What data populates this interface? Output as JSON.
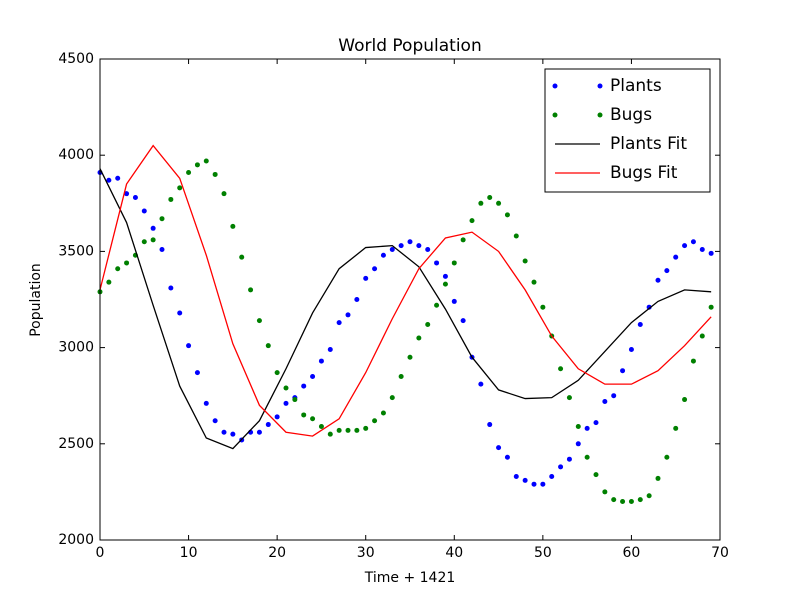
{
  "chart_data": {
    "type": "line",
    "title": "World Population",
    "xlabel": "Time + 1421",
    "ylabel": "Population",
    "x": [
      0,
      1,
      2,
      3,
      4,
      5,
      6,
      7,
      8,
      9,
      10,
      11,
      12,
      13,
      14,
      15,
      16,
      17,
      18,
      19,
      20,
      21,
      22,
      23,
      24,
      25,
      26,
      27,
      28,
      29,
      30,
      31,
      32,
      33,
      34,
      35,
      36,
      37,
      38,
      39,
      40,
      41,
      42,
      43,
      44,
      45,
      46,
      47,
      48,
      49,
      50,
      51,
      52,
      53,
      54,
      55,
      56,
      57,
      58,
      59,
      60,
      61,
      62,
      63,
      64,
      65,
      66,
      67,
      68,
      69
    ],
    "xlim": [
      0,
      70
    ],
    "xticks": [
      0,
      10,
      20,
      30,
      40,
      50,
      60,
      70
    ],
    "ylim": [
      2000,
      4500
    ],
    "yticks": [
      2000,
      2500,
      3000,
      3500,
      4000,
      4500
    ],
    "legend": "upper right",
    "series": [
      {
        "name": "Plants",
        "color": "#0000ff",
        "style": "dots",
        "values": [
          3910,
          3870,
          3880,
          3800,
          3780,
          3710,
          3620,
          3510,
          3310,
          3180,
          3010,
          2870,
          2710,
          2620,
          2560,
          2550,
          2520,
          2560,
          2560,
          2600,
          2640,
          2710,
          2740,
          2800,
          2850,
          2930,
          2990,
          3130,
          3170,
          3250,
          3360,
          3410,
          3480,
          3510,
          3530,
          3550,
          3530,
          3510,
          3440,
          3370,
          3240,
          3140,
          2950,
          2810,
          2600,
          2480,
          2430,
          2330,
          2310,
          2290,
          2290,
          2330,
          2380,
          2420,
          2500,
          2580,
          2610,
          2720,
          2750,
          2880,
          2990,
          3120,
          3210,
          3350,
          3400,
          3470,
          3530,
          3550,
          3510,
          3490
        ]
      },
      {
        "name": "Bugs",
        "color": "#008000",
        "style": "dots",
        "values": [
          3290,
          3340,
          3410,
          3440,
          3480,
          3550,
          3560,
          3670,
          3770,
          3830,
          3910,
          3950,
          3970,
          3900,
          3800,
          3630,
          3470,
          3300,
          3140,
          3010,
          2870,
          2790,
          2730,
          2650,
          2630,
          2590,
          2550,
          2570,
          2570,
          2570,
          2580,
          2620,
          2660,
          2740,
          2850,
          2950,
          3050,
          3120,
          3220,
          3330,
          3440,
          3560,
          3660,
          3750,
          3780,
          3750,
          3690,
          3580,
          3450,
          3340,
          3210,
          3060,
          2890,
          2740,
          2590,
          2430,
          2340,
          2250,
          2210,
          2200,
          2200,
          2210,
          2230,
          2320,
          2430,
          2580,
          2730,
          2930,
          3060,
          3210
        ]
      },
      {
        "name": "Plants Fit",
        "color": "#000000",
        "style": "line",
        "x": [
          0,
          3,
          6,
          9,
          12,
          15,
          18,
          21,
          24,
          27,
          30,
          33,
          36,
          39,
          42,
          45,
          48,
          51,
          54,
          57,
          60,
          63,
          66,
          69
        ],
        "values": [
          3930,
          3650,
          3220,
          2800,
          2530,
          2475,
          2620,
          2890,
          3180,
          3410,
          3520,
          3530,
          3420,
          3200,
          2950,
          2780,
          2735,
          2740,
          2830,
          2980,
          3130,
          3240,
          3300,
          3290
        ]
      },
      {
        "name": "Bugs Fit",
        "color": "#ff0000",
        "style": "line",
        "x": [
          0,
          3,
          6,
          9,
          12,
          15,
          18,
          21,
          24,
          27,
          30,
          33,
          36,
          39,
          42,
          45,
          48,
          51,
          54,
          57,
          60,
          63,
          66,
          69
        ],
        "values": [
          3300,
          3850,
          4050,
          3880,
          3480,
          3020,
          2700,
          2560,
          2540,
          2630,
          2870,
          3150,
          3410,
          3570,
          3600,
          3500,
          3300,
          3060,
          2890,
          2810,
          2810,
          2880,
          3010,
          3160
        ]
      }
    ]
  }
}
